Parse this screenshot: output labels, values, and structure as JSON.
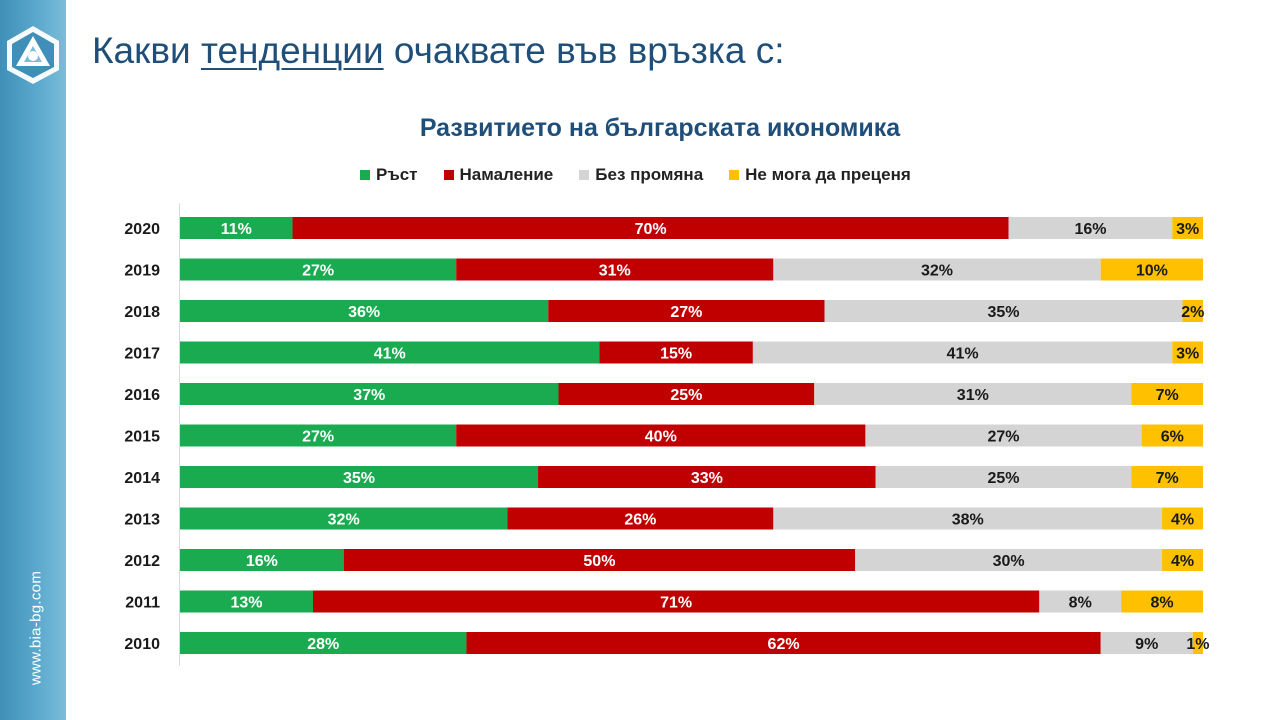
{
  "header": {
    "title_pre": "Какви ",
    "title_underlined": "тенденции",
    "title_post": " очаквате във връзка с:",
    "site_url": "www.bia-bg.com"
  },
  "colors": {
    "growth": "#1aab50",
    "decline": "#c00000",
    "no_change": "#d4d4d4",
    "cannot_say": "#ffc000",
    "title": "#1f4e79"
  },
  "chart_data": {
    "type": "bar",
    "orientation": "horizontal",
    "stacked": "percent",
    "title": "Развитието на българската икономика",
    "legend_position": "top",
    "categories": [
      "2020",
      "2019",
      "2018",
      "2017",
      "2016",
      "2015",
      "2014",
      "2013",
      "2012",
      "2011",
      "2010"
    ],
    "series": [
      {
        "name": "Ръст",
        "color": "#1aab50",
        "label_color": "#ffffff",
        "values": [
          11,
          27,
          36,
          41,
          37,
          27,
          35,
          32,
          16,
          13,
          28
        ]
      },
      {
        "name": "Намаление",
        "color": "#c00000",
        "label_color": "#ffffff",
        "values": [
          70,
          31,
          27,
          15,
          25,
          40,
          33,
          26,
          50,
          71,
          62
        ]
      },
      {
        "name": "Без промяна",
        "color": "#d4d4d4",
        "label_color": "#1a1a1a",
        "values": [
          16,
          32,
          35,
          41,
          31,
          27,
          25,
          38,
          30,
          8,
          9
        ]
      },
      {
        "name": "Не мога да преценя",
        "color": "#ffc000",
        "label_color": "#1a1a1a",
        "values": [
          3,
          10,
          2,
          3,
          7,
          6,
          7,
          4,
          4,
          8,
          1
        ]
      }
    ],
    "value_suffix": "%",
    "xlim": [
      0,
      100
    ]
  }
}
